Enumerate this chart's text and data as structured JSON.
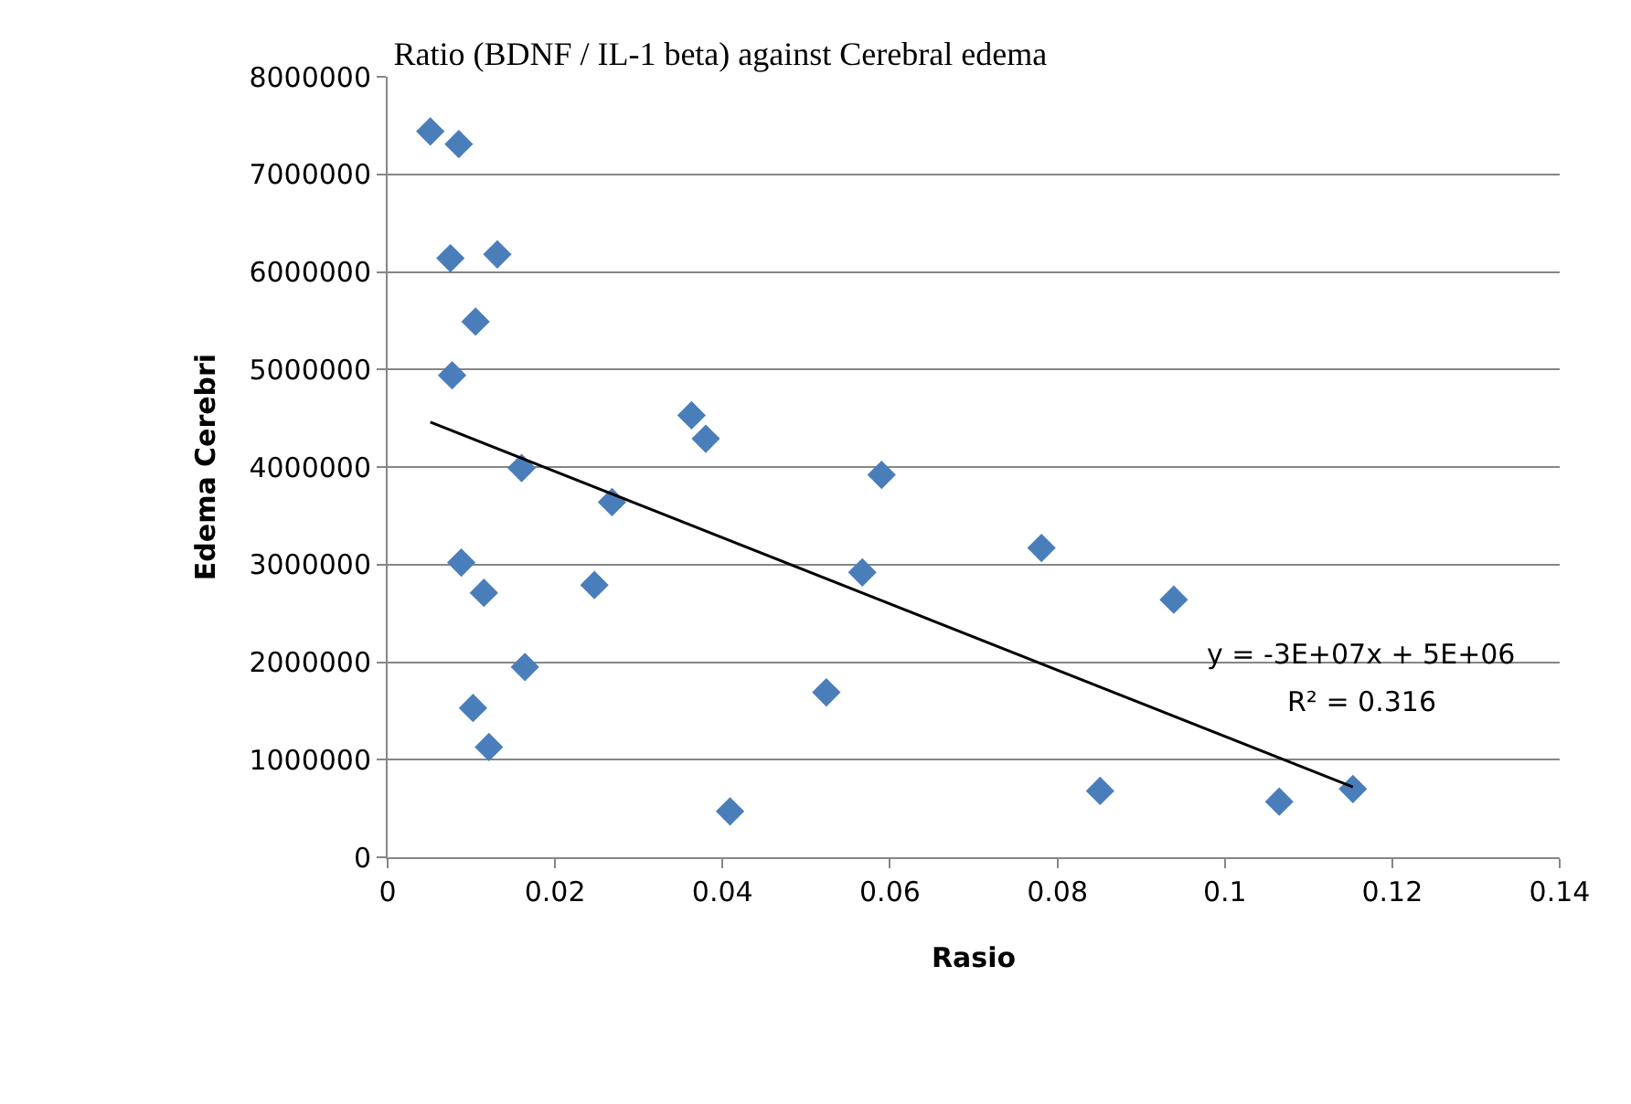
{
  "chart_data": {
    "type": "scatter",
    "title": "Ratio (BDNF / IL-1 beta) against Cerebral edema",
    "xlabel": "Rasio",
    "ylabel": "Edema Cerebri",
    "series": [
      {
        "color": "#4a7ebb",
        "marker": "diamond",
        "x": [
          0.0051,
          0.0085,
          0.0075,
          0.0131,
          0.0105,
          0.0077,
          0.0363,
          0.038,
          0.016,
          0.0268,
          0.0088,
          0.0115,
          0.0247,
          0.0164,
          0.0102,
          0.0121,
          0.0409,
          0.059,
          0.0567,
          0.0781,
          0.0939,
          0.0524,
          0.0851,
          0.1065,
          0.1153
        ],
        "values": [
          7440000,
          7310000,
          6140000,
          6180000,
          5490000,
          4940000,
          4530000,
          4290000,
          3990000,
          3640000,
          3020000,
          2710000,
          2790000,
          1950000,
          1530000,
          1130000,
          470000,
          3920000,
          2920000,
          3170000,
          2640000,
          1690000,
          680000,
          570000,
          700000
        ]
      },
      {
        "type": "line",
        "color": "#000000",
        "marker": "none",
        "line_style": "solid",
        "x": [
          0.0051,
          0.1153
        ],
        "values": [
          4460000,
          720000
        ]
      }
    ],
    "annotations": [
      "y = -3E+07x + 5E+06",
      "R² = 0.316"
    ],
    "xlim": [
      0,
      0.14
    ],
    "xticks": [
      0,
      0.02,
      0.04,
      0.06,
      0.08,
      0.1,
      0.12,
      0.14
    ],
    "ylim": [
      0,
      8000000
    ],
    "yticks": [
      0,
      1000000,
      2000000,
      3000000,
      4000000,
      5000000,
      6000000,
      7000000,
      8000000
    ],
    "grid": "y",
    "legend": false
  }
}
